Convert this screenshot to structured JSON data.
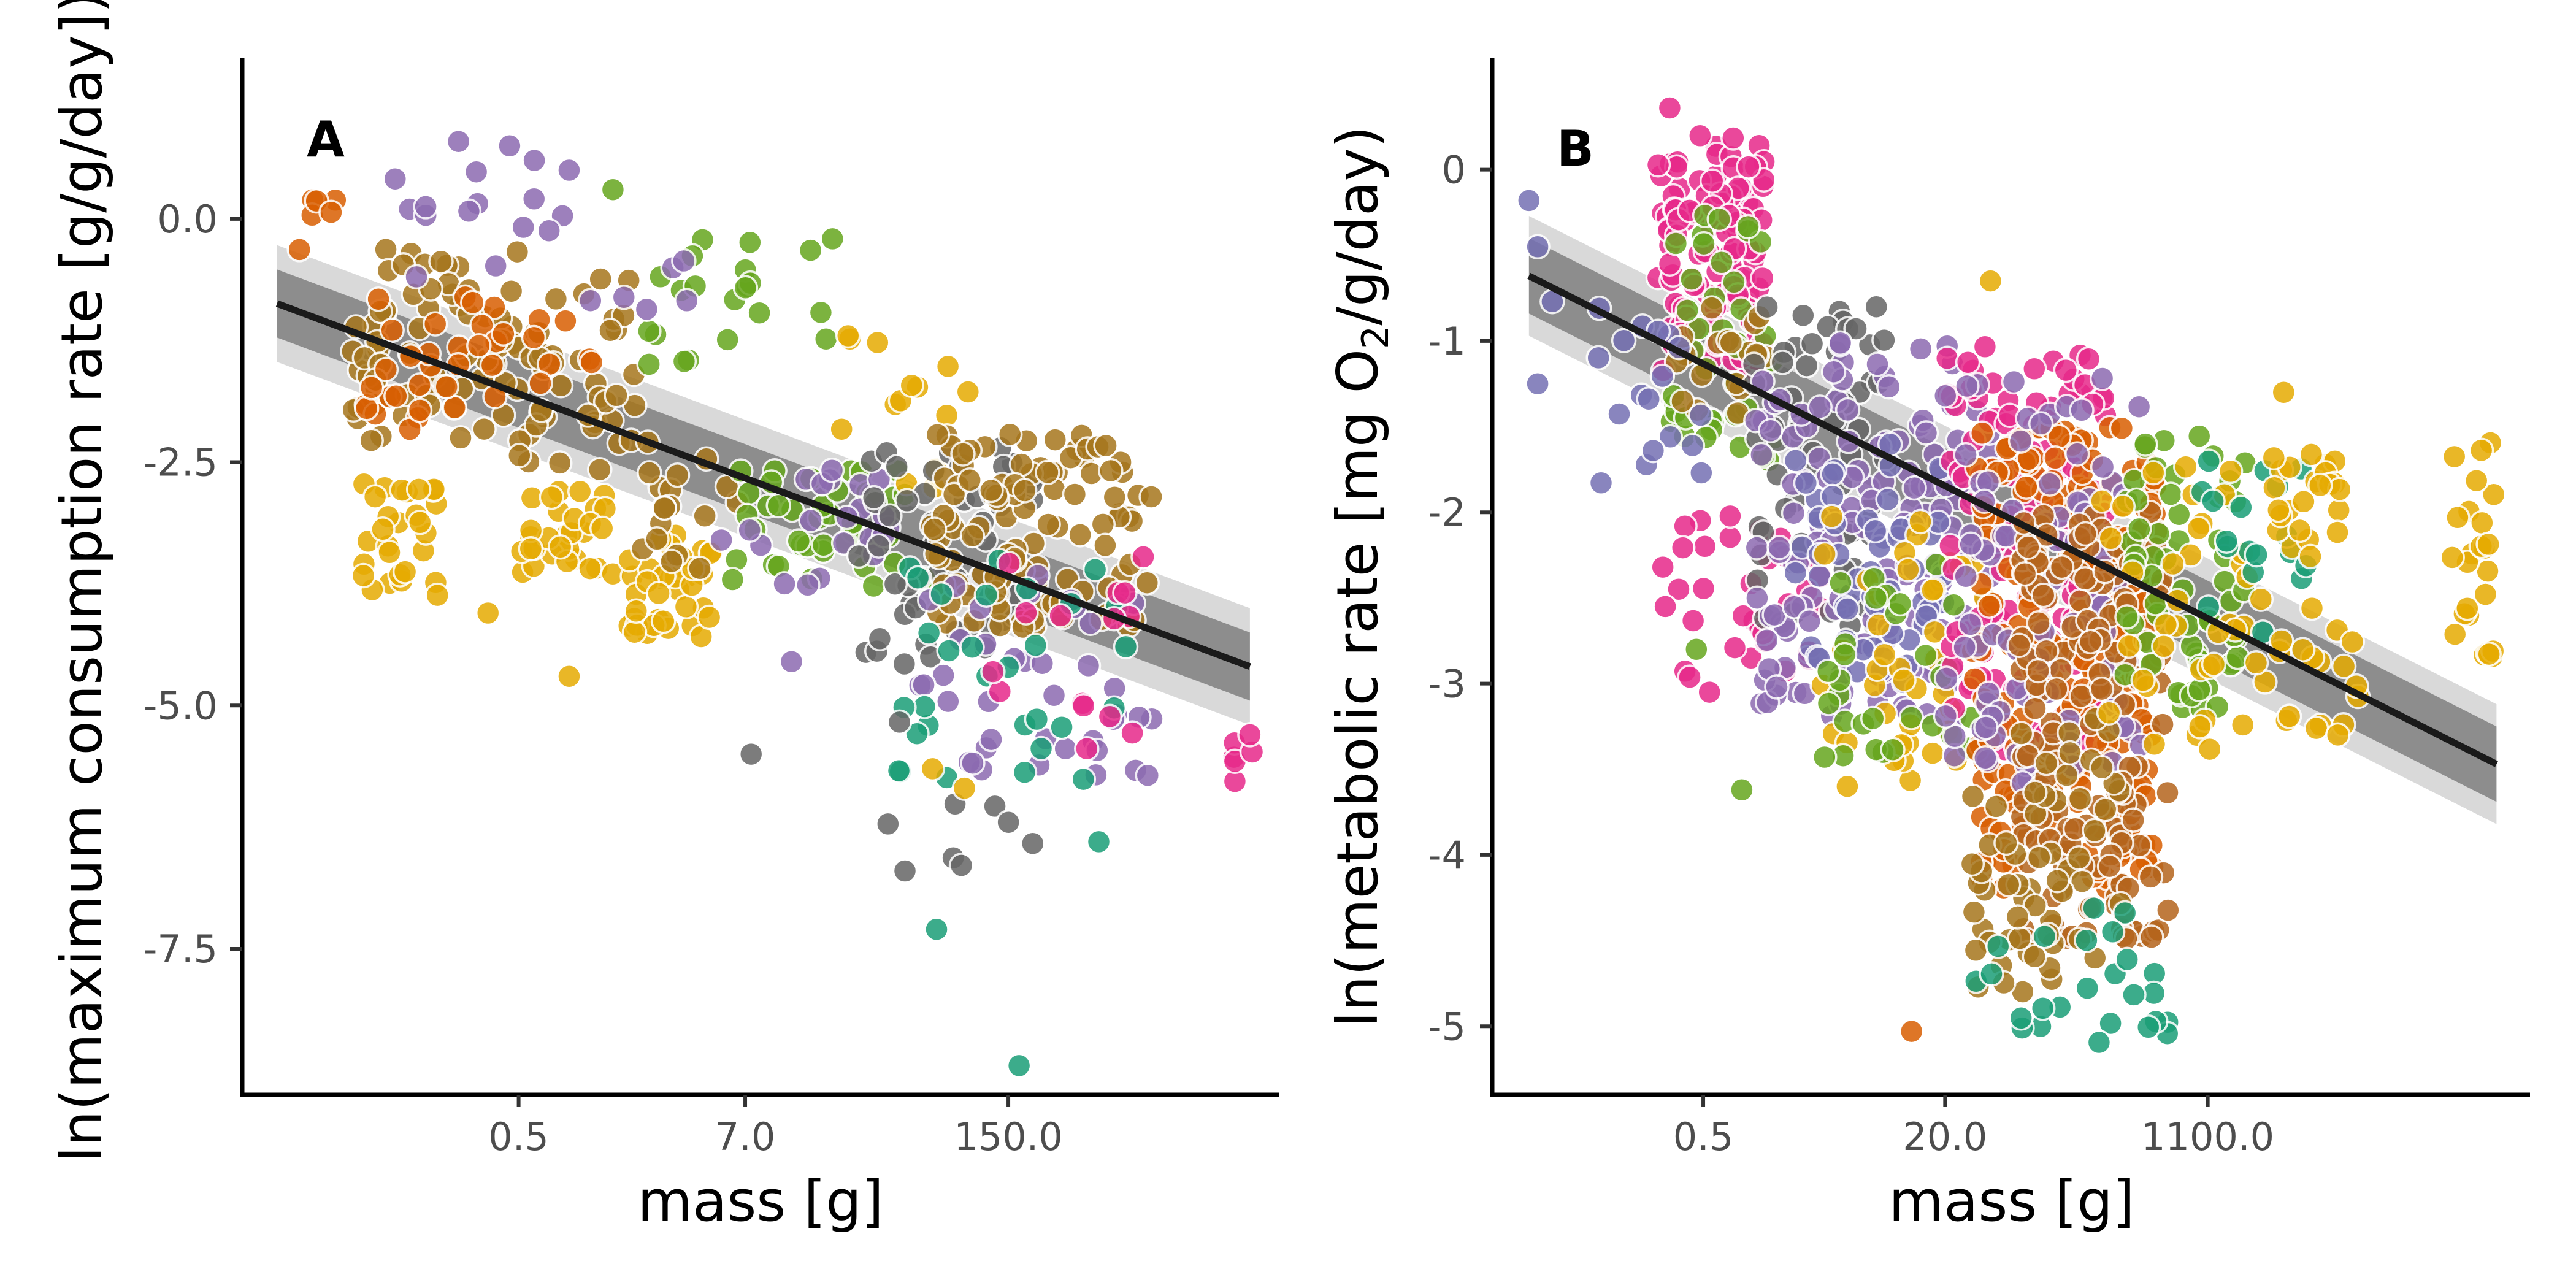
{
  "chart_data": [
    {
      "type": "scatter",
      "panel_label": "A",
      "xlabel": "mass [g]",
      "ylabel": "ln(maximum consumption rate [g/g/day])",
      "x_scale": "log",
      "x_tick_labels": [
        "0.5",
        "7.0",
        "150.0"
      ],
      "x_ticks": [
        0.5,
        7.0,
        150.0
      ],
      "xlim": [
        0.02,
        3500
      ],
      "y_ticks": [
        0.0,
        -2.5,
        -5.0,
        -7.5
      ],
      "y_tick_labels": [
        "0.0",
        "-2.5",
        "-5.0",
        "-7.5"
      ],
      "ylim": [
        -9.0,
        1.65
      ],
      "grid": false,
      "legend": "none",
      "fit": {
        "x": [
          0.03,
          2500
        ],
        "y": [
          -0.87,
          -4.6
        ],
        "ci_inner": 0.35,
        "ci_outer": 0.6
      },
      "point_colors": [
        "#d95f02",
        "#7570b3",
        "#e7298a",
        "#66a61e",
        "#e6ab02",
        "#a6761d",
        "#666666",
        "#1b9e77",
        "#8c6bb1",
        "#b5651d"
      ],
      "clusters": [
        {
          "x": [
            0.03,
            0.07
          ],
          "y": [
            -0.5,
            0.2
          ],
          "n": 6,
          "color": 0
        },
        {
          "x": [
            0.07,
            0.5
          ],
          "y": [
            -2.3,
            -0.3
          ],
          "n": 70,
          "color": 5
        },
        {
          "x": [
            0.08,
            0.4
          ],
          "y": [
            -2.3,
            -0.8
          ],
          "n": 25,
          "color": 0
        },
        {
          "x": [
            0.1,
            0.9
          ],
          "y": [
            -0.6,
            0.8
          ],
          "n": 14,
          "color": 8
        },
        {
          "x": [
            0.5,
            2.0
          ],
          "y": [
            -2.6,
            -0.6
          ],
          "n": 40,
          "color": 5
        },
        {
          "x": [
            0.3,
            1.5
          ],
          "y": [
            -1.8,
            -0.9
          ],
          "n": 12,
          "color": 0
        },
        {
          "x": [
            0.08,
            0.2
          ],
          "y": [
            -3.9,
            -2.7
          ],
          "n": 28,
          "color": 4
        },
        {
          "x": [
            0.5,
            1.5
          ],
          "y": [
            -3.7,
            -2.8
          ],
          "n": 30,
          "color": 4
        },
        {
          "x": [
            1.8,
            5.0
          ],
          "y": [
            -4.3,
            -3.2
          ],
          "n": 38,
          "color": 4
        },
        {
          "x": [
            2.0,
            6.5
          ],
          "y": [
            -3.6,
            -2.2
          ],
          "n": 18,
          "color": 5
        },
        {
          "x": [
            2.0,
            20.0
          ],
          "y": [
            -1.6,
            -0.2
          ],
          "n": 22,
          "color": 3
        },
        {
          "x": [
            1.0,
            6.0
          ],
          "y": [
            -1.0,
            -0.3
          ],
          "n": 6,
          "color": 8
        },
        {
          "x": [
            6.0,
            60.0
          ],
          "y": [
            -3.8,
            -2.5
          ],
          "n": 40,
          "color": 3
        },
        {
          "x": [
            5.0,
            40.0
          ],
          "y": [
            -3.8,
            -2.5
          ],
          "n": 20,
          "color": 8
        },
        {
          "x": [
            10.0,
            100.0
          ],
          "y": [
            -2.8,
            -1.2
          ],
          "n": 14,
          "color": 4
        },
        {
          "x": [
            25.0,
            200.0
          ],
          "y": [
            -4.6,
            -2.3
          ],
          "n": 50,
          "color": 6
        },
        {
          "x": [
            60.0,
            800.0
          ],
          "y": [
            -4.2,
            -2.2
          ],
          "n": 110,
          "color": 5
        },
        {
          "x": [
            50.0,
            800.0
          ],
          "y": [
            -5.8,
            -3.5
          ],
          "n": 40,
          "color": 8
        },
        {
          "x": [
            40.0,
            1000.0
          ],
          "y": [
            -5.8,
            -3.5
          ],
          "n": 30,
          "color": 7
        },
        {
          "x": [
            100.0,
            800.0
          ],
          "y": [
            -5.5,
            -3.0
          ],
          "n": 15,
          "color": 2
        },
        {
          "x": [
            30.0,
            200.0
          ],
          "y": [
            -6.8,
            -5.0
          ],
          "n": 7,
          "color": 6
        },
        {
          "x": [
            2000.0,
            2700.0
          ],
          "y": [
            -5.8,
            -5.2
          ],
          "n": 5,
          "color": 2
        }
      ],
      "extra_points": [
        {
          "x": 0.45,
          "y": 0.75,
          "color": 8
        },
        {
          "x": 0.6,
          "y": 0.6,
          "color": 8
        },
        {
          "x": 0.9,
          "y": 0.5,
          "color": 8
        },
        {
          "x": 1.5,
          "y": 0.3,
          "color": 3
        },
        {
          "x": 0.35,
          "y": -4.05,
          "color": 4
        },
        {
          "x": 0.9,
          "y": -4.7,
          "color": 4
        },
        {
          "x": 7.5,
          "y": -5.5,
          "color": 6
        },
        {
          "x": 5.3,
          "y": -3.3,
          "color": 8
        },
        {
          "x": 12.0,
          "y": -4.55,
          "color": 8
        },
        {
          "x": 45.0,
          "y": -6.7,
          "color": 6
        },
        {
          "x": 65.0,
          "y": -7.3,
          "color": 7
        },
        {
          "x": 170.0,
          "y": -8.7,
          "color": 7
        },
        {
          "x": 150.0,
          "y": -6.2,
          "color": 6
        },
        {
          "x": 62.0,
          "y": -5.65,
          "color": 4
        },
        {
          "x": 90.0,
          "y": -5.85,
          "color": 4
        },
        {
          "x": 430.0,
          "y": -6.4,
          "color": 7
        },
        {
          "x": 2500.0,
          "y": -5.3,
          "color": 2
        }
      ]
    },
    {
      "type": "scatter",
      "panel_label": "B",
      "xlabel": "mass [g]",
      "ylabel": "ln(metabolic rate [mg O2/g/day])",
      "ylabel_main": "ln(metabolic rate [mg O",
      "ylabel_sub": "2",
      "ylabel_end": "/g/day)",
      "x_scale": "log",
      "x_tick_labels": [
        "0.5",
        "20.0",
        "1100.0"
      ],
      "x_ticks": [
        0.5,
        20.0,
        1100.0
      ],
      "xlim": [
        0.02,
        150000
      ],
      "y_ticks": [
        0,
        -1,
        -2,
        -3,
        -4,
        -5
      ],
      "y_tick_labels": [
        "0",
        "-1",
        "-2",
        "-3",
        "-4",
        "-5"
      ],
      "ylim": [
        -5.4,
        0.65
      ],
      "grid": false,
      "legend": "none",
      "fit": {
        "x": [
          0.035,
          90000
        ],
        "y": [
          -0.62,
          -3.47
        ],
        "ci_inner": 0.22,
        "ci_outer": 0.35
      },
      "point_colors": [
        "#d95f02",
        "#7570b3",
        "#e7298a",
        "#66a61e",
        "#e6ab02",
        "#a6761d",
        "#666666",
        "#1b9e77",
        "#8c6bb1",
        "#b5651d"
      ],
      "clusters": [
        {
          "x": [
            0.25,
            1.3
          ],
          "y": [
            -1.2,
            0.2
          ],
          "n": 120,
          "color": 2
        },
        {
          "x": [
            0.3,
            1.5
          ],
          "y": [
            -1.8,
            -0.2
          ],
          "n": 40,
          "color": 3
        },
        {
          "x": [
            0.3,
            1.5
          ],
          "y": [
            -1.5,
            -0.8
          ],
          "n": 20,
          "color": 5
        },
        {
          "x": [
            0.1,
            0.5
          ],
          "y": [
            -1.9,
            -0.8
          ],
          "n": 18,
          "color": 1
        },
        {
          "x": [
            0.3,
            3.0
          ],
          "y": [
            -3.0,
            -2.0
          ],
          "n": 35,
          "color": 2
        },
        {
          "x": [
            1.0,
            8.0
          ],
          "y": [
            -2.8,
            -0.8
          ],
          "n": 60,
          "color": 6
        },
        {
          "x": [
            1.0,
            40.0
          ],
          "y": [
            -3.2,
            -1.0
          ],
          "n": 140,
          "color": 8
        },
        {
          "x": [
            2.0,
            20.0
          ],
          "y": [
            -3.0,
            -1.6
          ],
          "n": 60,
          "color": 1
        },
        {
          "x": [
            3.0,
            40.0
          ],
          "y": [
            -3.6,
            -2.0
          ],
          "n": 40,
          "color": 4
        },
        {
          "x": [
            3.0,
            30.0
          ],
          "y": [
            -3.5,
            -2.2
          ],
          "n": 30,
          "color": 3
        },
        {
          "x": [
            20.0,
            250.0
          ],
          "y": [
            -3.4,
            -1.0
          ],
          "n": 150,
          "color": 2
        },
        {
          "x": [
            30.0,
            500.0
          ],
          "y": [
            -4.2,
            -1.5
          ],
          "n": 220,
          "color": 0
        },
        {
          "x": [
            20.0,
            400.0
          ],
          "y": [
            -3.6,
            -1.2
          ],
          "n": 90,
          "color": 8
        },
        {
          "x": [
            60.0,
            600.0
          ],
          "y": [
            -4.5,
            -2.0
          ],
          "n": 160,
          "color": 9
        },
        {
          "x": [
            30.0,
            300.0
          ],
          "y": [
            -4.8,
            -3.2
          ],
          "n": 60,
          "color": 5
        },
        {
          "x": [
            300.0,
            2000.0
          ],
          "y": [
            -3.2,
            -1.5
          ],
          "n": 60,
          "color": 3
        },
        {
          "x": [
            200.0,
            3000.0
          ],
          "y": [
            -3.4,
            -1.7
          ],
          "n": 40,
          "color": 4
        },
        {
          "x": [
            1000.0,
            5000.0
          ],
          "y": [
            -2.8,
            -1.7
          ],
          "n": 18,
          "color": 7
        },
        {
          "x": [
            3000.0,
            12000.0
          ],
          "y": [
            -3.3,
            -1.6
          ],
          "n": 40,
          "color": 4
        },
        {
          "x": [
            45000.0,
            90000.0
          ],
          "y": [
            -2.9,
            -1.5
          ],
          "n": 25,
          "color": 4
        },
        {
          "x": [
            30.0,
            600.0
          ],
          "y": [
            -5.1,
            -4.2
          ],
          "n": 25,
          "color": 7
        }
      ],
      "extra_points": [
        {
          "x": 0.035,
          "y": -0.18,
          "color": 1
        },
        {
          "x": 0.04,
          "y": -0.45,
          "color": 1
        },
        {
          "x": 0.04,
          "y": -1.25,
          "color": 1
        },
        {
          "x": 0.05,
          "y": -0.77,
          "color": 1
        },
        {
          "x": 0.3,
          "y": 0.36,
          "color": 2
        },
        {
          "x": 0.27,
          "y": -2.32,
          "color": 2
        },
        {
          "x": 0.28,
          "y": -2.55,
          "color": 2
        },
        {
          "x": 0.55,
          "y": -3.05,
          "color": 2
        },
        {
          "x": 0.45,
          "y": -2.8,
          "color": 3
        },
        {
          "x": 0.9,
          "y": -3.62,
          "color": 3
        },
        {
          "x": 4.5,
          "y": -3.6,
          "color": 4
        },
        {
          "x": 12.0,
          "y": -5.03,
          "color": 0
        },
        {
          "x": 3500.0,
          "y": -1.3,
          "color": 4
        },
        {
          "x": 8000.0,
          "y": -3.3,
          "color": 4
        },
        {
          "x": 40.0,
          "y": -0.65,
          "color": 4
        }
      ]
    }
  ]
}
